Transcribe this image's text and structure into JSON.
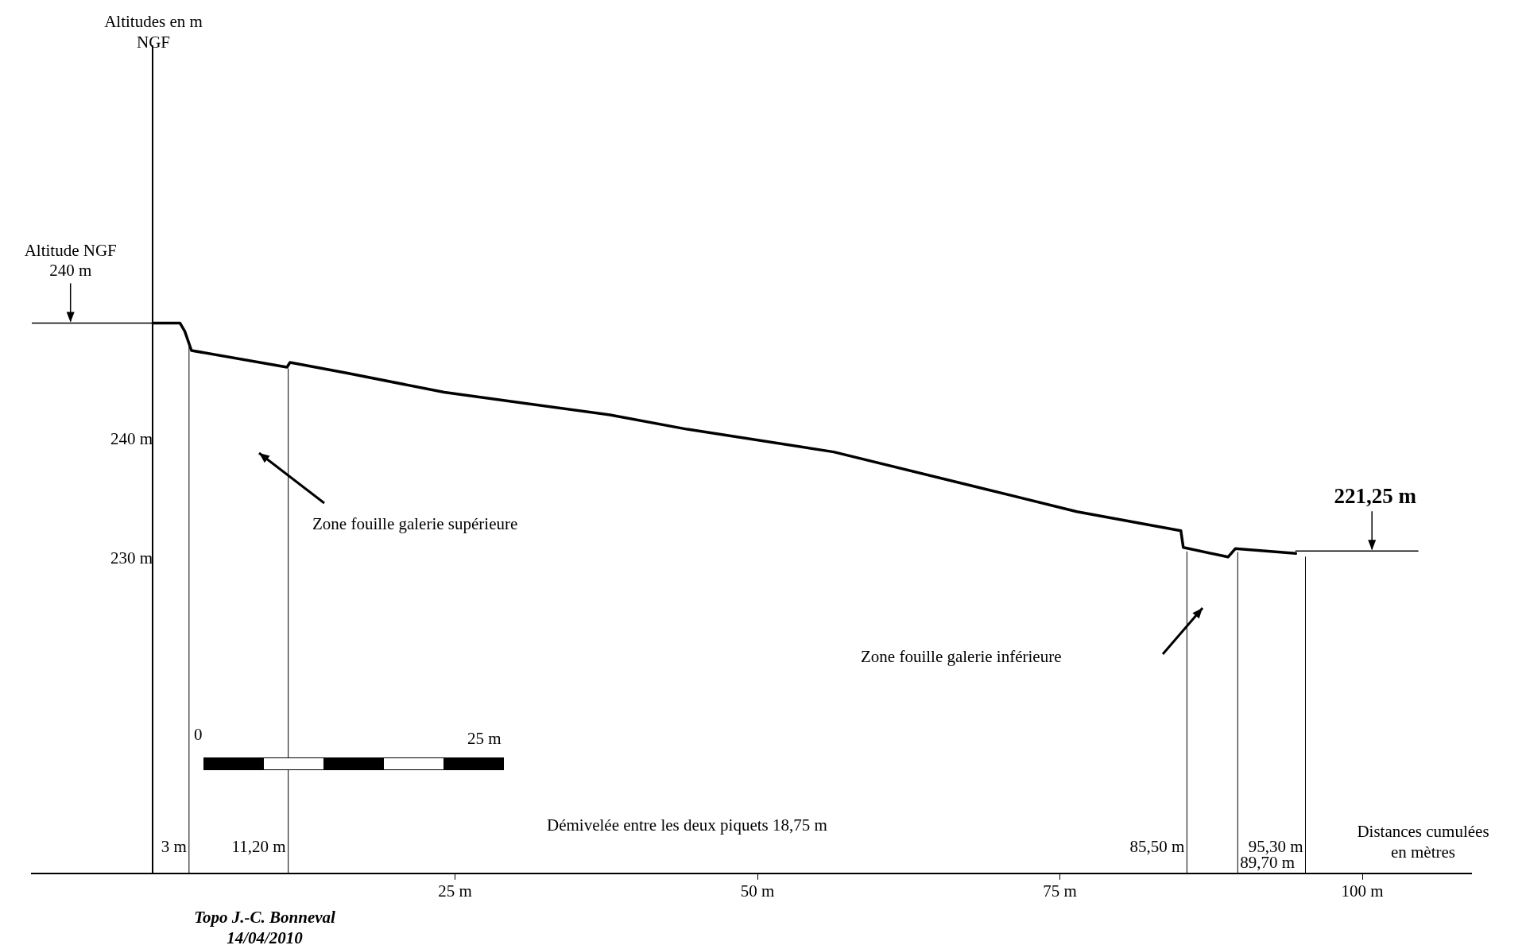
{
  "chart_data": {
    "type": "line",
    "ylabel": "Altitudes en m NGF",
    "xlabel": "Distances cumulées en mètres",
    "xlim": [
      -10,
      109
    ],
    "xticks": [
      {
        "value": 25,
        "label": "25 m"
      },
      {
        "value": 50,
        "label": "50 m"
      },
      {
        "value": 75,
        "label": "75 m"
      },
      {
        "value": 100,
        "label": "100 m"
      }
    ],
    "ylim": [
      203.7,
      273
    ],
    "yticks": [
      {
        "value": 230,
        "label": "230 m"
      },
      {
        "value": 240,
        "label": "240 m"
      }
    ],
    "grid": false,
    "legend": false,
    "marker": "none",
    "line_style": "solid",
    "series": [
      {
        "color": "#000000",
        "x": [
          0,
          2.25,
          2.65,
          3.2,
          11.1,
          11.35,
          16.1,
          24.1,
          37.8,
          44.2,
          56.3,
          68.4,
          76.4,
          85.0,
          85.2,
          88.9,
          89.5,
          94.5
        ],
        "values": [
          249.8,
          249.8,
          249.1,
          247.5,
          246.1,
          246.5,
          245.6,
          244.0,
          242.1,
          240.9,
          239.0,
          236.0,
          234.0,
          232.4,
          231.0,
          230.2,
          230.9,
          230.5
        ]
      },
      {
        "color": "#000000",
        "x": [
          -10,
          0
        ],
        "values": [
          249.8,
          249.8
        ]
      },
      {
        "color": "#000000",
        "x": [
          94.5,
          104.6
        ],
        "values": [
          230.7,
          230.7
        ]
      }
    ],
    "ref_lines": [
      {
        "axis": "x",
        "value": 3,
        "label": "3 m"
      },
      {
        "axis": "x",
        "value": 11.2,
        "label": "11,20 m"
      },
      {
        "axis": "x",
        "value": 85.5,
        "label": "85,50 m"
      },
      {
        "axis": "x",
        "value": 89.7,
        "label": "89,70 m"
      },
      {
        "axis": "x",
        "value": 95.3,
        "label": "95,30 m"
      }
    ],
    "annotations": [
      {
        "text": "Altitude NGF 240 m",
        "x": -6.8,
        "y": 249.8
      },
      {
        "text": "221,25 m",
        "x": 100.8,
        "y": 230.7
      },
      "Zone fouille galerie supérieure",
      "Zone fouille galerie inférieure",
      "Démivelée entre les deux piquets 18,75 m",
      "0",
      "25 m",
      "Topo J.-C. Bonneval 14/04/2010"
    ]
  }
}
